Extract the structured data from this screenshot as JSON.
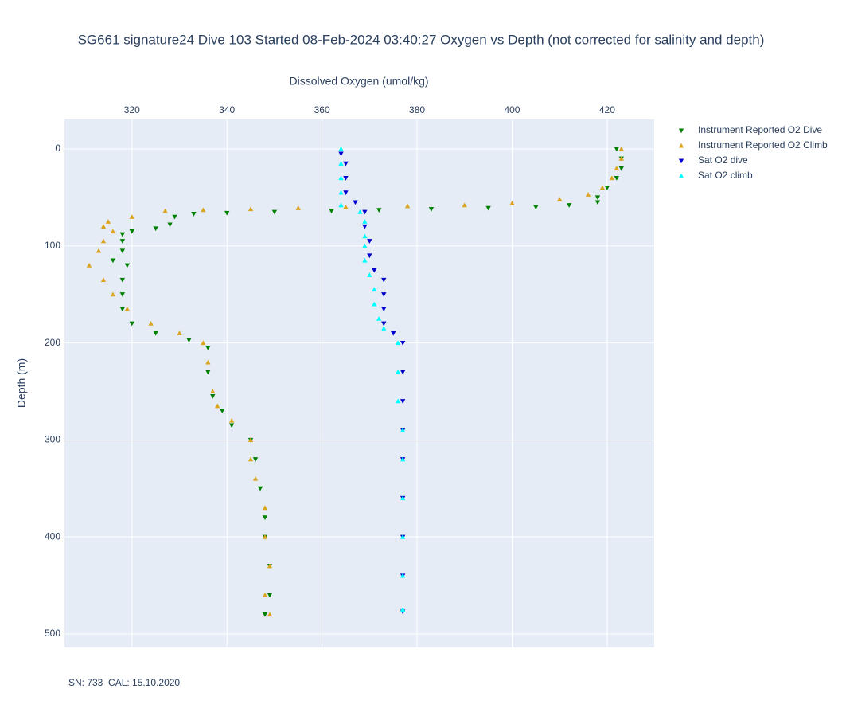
{
  "chart_data": {
    "type": "scatter",
    "title": "SG661 signature24 Dive 103 Started 08-Feb-2024 03:40:27  Oxygen vs Depth (not corrected for salinity and depth)",
    "x_label": "Dissolved Oxygen (umol/kg)",
    "y_label": "Depth (m)",
    "footnote": "SN: 733  CAL: 15.10.2020",
    "xlim": [
      305.8,
      429.9
    ],
    "xticks": [
      320,
      340,
      360,
      380,
      400,
      420
    ],
    "ylim": [
      514,
      -30.4
    ],
    "yticks": [
      0,
      100,
      200,
      300,
      400,
      500
    ],
    "grid": true,
    "legend": "right",
    "series": [
      {
        "name": "Instrument Reported O2 Dive",
        "color": "#008000",
        "marker": "triangle-down",
        "x": [
          422,
          423,
          423,
          422,
          420,
          418,
          418,
          412,
          405,
          395,
          383,
          372,
          362,
          350,
          340,
          333,
          329,
          328,
          325,
          320,
          318,
          318,
          318,
          316,
          319,
          318,
          318,
          318,
          320,
          325,
          332,
          336,
          336,
          337,
          339,
          341,
          345,
          346,
          347,
          348,
          348,
          349,
          349,
          348
        ],
        "y": [
          0,
          10,
          20,
          30,
          40,
          50,
          55,
          58,
          60,
          61,
          62,
          63,
          64,
          65,
          66,
          67,
          70,
          78,
          82,
          85,
          88,
          95,
          105,
          115,
          120,
          135,
          150,
          165,
          180,
          190,
          197,
          205,
          230,
          255,
          270,
          285,
          300,
          320,
          350,
          380,
          400,
          430,
          460,
          480
        ]
      },
      {
        "name": "Instrument Reported O2 Climb",
        "color": "#daa520",
        "marker": "triangle-up",
        "x": [
          423,
          423,
          422,
          421,
          419,
          416,
          410,
          400,
          390,
          378,
          365,
          355,
          345,
          335,
          327,
          320,
          315,
          314,
          316,
          314,
          313,
          311,
          314,
          316,
          319,
          324,
          330,
          335,
          336,
          337,
          338,
          341,
          345,
          345,
          346,
          348,
          348,
          349,
          348,
          349
        ],
        "y": [
          0,
          10,
          20,
          30,
          40,
          47,
          52,
          56,
          58,
          59,
          60,
          61,
          62,
          63,
          64,
          70,
          75,
          80,
          85,
          95,
          105,
          120,
          135,
          150,
          165,
          180,
          190,
          200,
          220,
          250,
          265,
          280,
          300,
          320,
          340,
          370,
          400,
          430,
          460,
          480
        ]
      },
      {
        "name": "Sat O2 dive",
        "color": "#0000cd",
        "marker": "triangle-down",
        "x": [
          364,
          365,
          365,
          365,
          367,
          369,
          369,
          370,
          370,
          371,
          373,
          373,
          373,
          373,
          375,
          377,
          377,
          377,
          377,
          377,
          377,
          377,
          377,
          377
        ],
        "y": [
          5,
          15,
          30,
          45,
          55,
          65,
          80,
          95,
          110,
          125,
          135,
          150,
          165,
          180,
          190,
          200,
          230,
          260,
          290,
          320,
          360,
          400,
          440,
          477
        ]
      },
      {
        "name": "Sat O2 climb",
        "color": "#00ffff",
        "marker": "triangle-up",
        "x": [
          364,
          364,
          364,
          364,
          364,
          368,
          369,
          369,
          369,
          369,
          370,
          371,
          371,
          372,
          373,
          376,
          376,
          376,
          377,
          377,
          377,
          377,
          377,
          377
        ],
        "y": [
          0,
          15,
          30,
          45,
          58,
          65,
          75,
          90,
          100,
          115,
          130,
          145,
          160,
          175,
          185,
          200,
          230,
          260,
          290,
          320,
          360,
          400,
          440,
          475
        ]
      }
    ]
  }
}
